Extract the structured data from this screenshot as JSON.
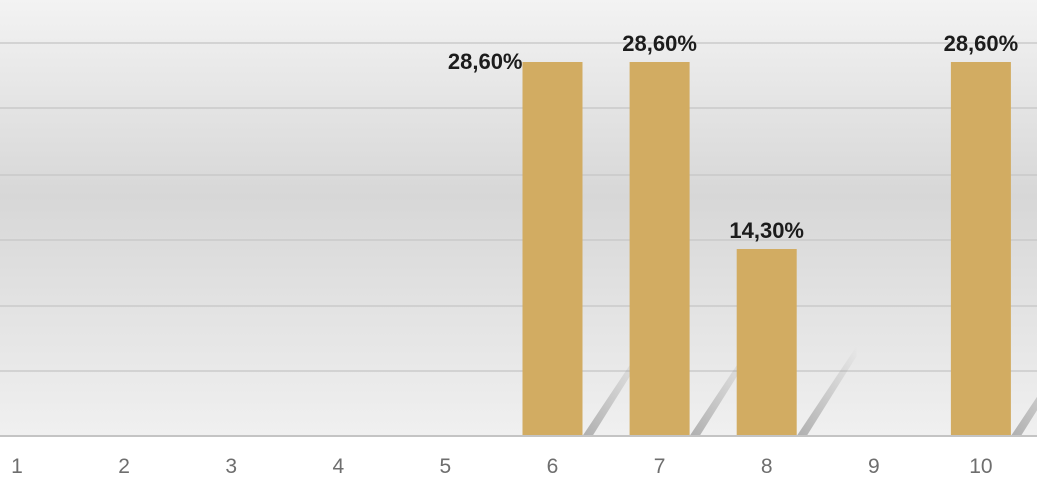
{
  "chart_data": {
    "type": "bar",
    "categories": [
      "1",
      "2",
      "3",
      "4",
      "5",
      "6",
      "7",
      "8",
      "9",
      "10"
    ],
    "values": [
      null,
      null,
      null,
      null,
      null,
      28.6,
      28.6,
      14.3,
      null,
      28.6
    ],
    "data_labels": [
      "",
      "",
      "",
      "",
      "",
      "28,60%",
      "28,60%",
      "14,30%",
      "",
      "28,60%"
    ],
    "title": "",
    "xlabel": "",
    "ylabel": "",
    "ylim": [
      0,
      28.6
    ],
    "grid": true,
    "legend": "none",
    "colors": {
      "bar": "#d2ac62",
      "background_light": "#f2f2f2",
      "background_dark": "#d6d6d6",
      "gridline": "#c8c8c8",
      "shadow": "#9a9a9a"
    }
  }
}
